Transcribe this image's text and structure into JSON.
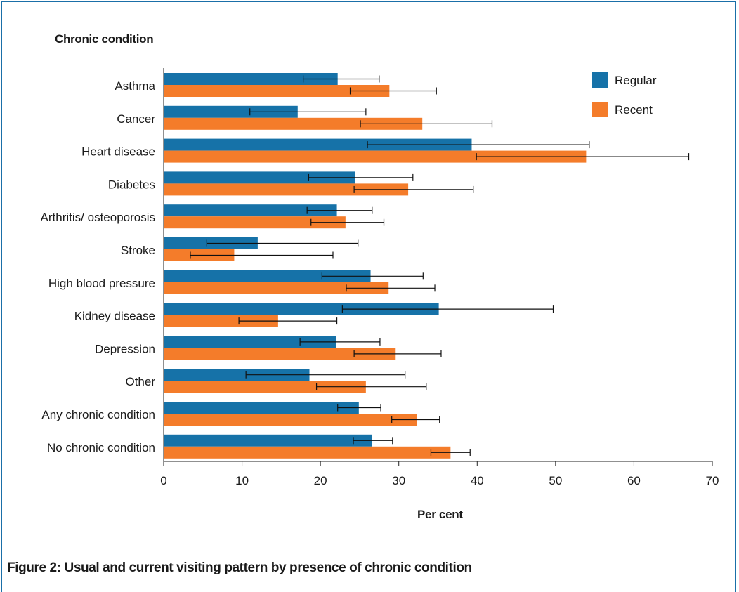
{
  "caption": "Figure 2: Usual and current visiting pattern by presence of chronic condition",
  "colors": {
    "regular": "#1672a8",
    "recent": "#f47c2a",
    "frame": "#1a6fa8",
    "text": "#1a1a1a"
  },
  "chart_data": {
    "type": "bar",
    "orientation": "horizontal",
    "title": "",
    "xlabel": "Per cent",
    "ylabel": "Chronic condition",
    "xlim": [
      0,
      70
    ],
    "xticks": [
      0,
      10,
      20,
      30,
      40,
      50,
      60,
      70
    ],
    "grid": false,
    "legend_position": "top-right",
    "categories": [
      "Asthma",
      "Cancer",
      "Heart disease",
      "Diabetes",
      "Arthritis/ osteoporosis",
      "Stroke",
      "High blood pressure",
      "Kidney disease",
      "Depression",
      "Other",
      "Any chronic condition",
      "No chronic condition"
    ],
    "series": [
      {
        "name": "Regular",
        "color": "#1672a8",
        "values": [
          22.2,
          17.1,
          39.3,
          24.4,
          22.1,
          12.0,
          26.4,
          35.1,
          22.0,
          18.6,
          24.9,
          26.6
        ],
        "ci_low": [
          17.8,
          11.0,
          26.0,
          18.5,
          18.3,
          5.5,
          20.2,
          22.8,
          17.4,
          10.5,
          22.2,
          24.2
        ],
        "ci_high": [
          27.5,
          25.8,
          54.3,
          31.8,
          26.6,
          24.8,
          33.1,
          49.7,
          27.6,
          30.8,
          27.7,
          29.2
        ]
      },
      {
        "name": "Recent",
        "color": "#f47c2a",
        "values": [
          28.8,
          33.0,
          53.9,
          31.2,
          23.2,
          9.0,
          28.7,
          14.6,
          29.6,
          25.8,
          32.3,
          36.6
        ],
        "ci_low": [
          23.8,
          25.1,
          39.9,
          24.3,
          18.8,
          3.4,
          23.3,
          9.6,
          24.3,
          19.5,
          29.1,
          34.1
        ],
        "ci_high": [
          34.8,
          41.9,
          67.0,
          39.5,
          28.1,
          21.6,
          34.6,
          22.1,
          35.4,
          33.5,
          35.2,
          39.1
        ]
      }
    ]
  }
}
